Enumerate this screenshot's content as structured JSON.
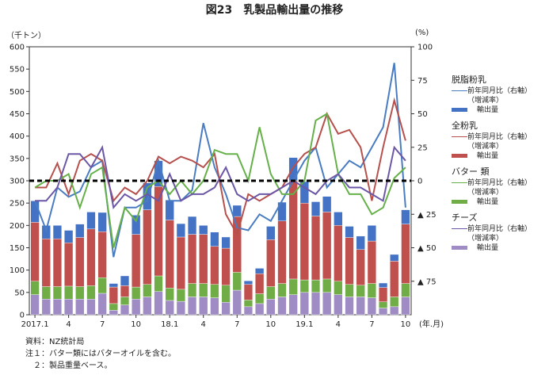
{
  "title": "図23　乳製品輸出量の推移",
  "left_unit": "（千トン）",
  "right_unit": "(%)",
  "x_unit": "(年.月)",
  "colors": {
    "skim_line": "#4a7cc2",
    "skim_bar": "#4472c4",
    "whole_line": "#b6504d",
    "whole_bar": "#c0504d",
    "butter_line": "#66b04a",
    "butter_bar": "#70ad47",
    "cheese_line": "#6b57a6",
    "cheese_bar": "#a08cc4"
  },
  "legend": [
    {
      "name": "脱脂粉乳",
      "line_label": "前年同月比（右軸）",
      "line_sub": "（増減率）",
      "bar_label": "輸出量"
    },
    {
      "name": "全粉乳",
      "line_label": "前年同月比（右軸）",
      "line_sub": "（増減率）",
      "bar_label": "輸出量"
    },
    {
      "name": "バター 類",
      "line_label": "前年同月比（右軸）",
      "line_sub": "（増減率）",
      "bar_label": "輸出量"
    },
    {
      "name": "チーズ",
      "line_label": "前年同月比（右軸）",
      "line_sub": "（増減率）",
      "bar_label": "輸出量"
    }
  ],
  "notes": [
    "資料：NZ統計局",
    "注１：バター類にはバターオイルを含む。",
    "　２：製品重量ベース。"
  ],
  "chart_data": {
    "type": "bar",
    "stacked": true,
    "x": [
      "2017.1",
      "2",
      "3",
      "4",
      "5",
      "6",
      "7",
      "8",
      "9",
      "10",
      "11",
      "12",
      "18.1",
      "2",
      "3",
      "4",
      "5",
      "6",
      "7",
      "8",
      "9",
      "10",
      "11",
      "12",
      "19.1",
      "2",
      "3",
      "4",
      "5",
      "6",
      "7",
      "8",
      "9",
      "10"
    ],
    "x_tick_labels": [
      {
        "i": 0,
        "label": "2017.1"
      },
      {
        "i": 3,
        "label": "4"
      },
      {
        "i": 6,
        "label": "7"
      },
      {
        "i": 9,
        "label": "10"
      },
      {
        "i": 12,
        "label": "18.1"
      },
      {
        "i": 15,
        "label": "4"
      },
      {
        "i": 18,
        "label": "7"
      },
      {
        "i": 21,
        "label": "10"
      },
      {
        "i": 24,
        "label": "19.1"
      },
      {
        "i": 27,
        "label": "4"
      },
      {
        "i": 30,
        "label": "7"
      },
      {
        "i": 33,
        "label": "10"
      }
    ],
    "left_axis": {
      "min": 0,
      "max": 600,
      "step": 50
    },
    "right_axis": {
      "min": -100,
      "max": 100,
      "ticks": [
        {
          "v": 100,
          "label": "100"
        },
        {
          "v": 75,
          "label": "75"
        },
        {
          "v": 50,
          "label": "50"
        },
        {
          "v": 25,
          "label": "25"
        },
        {
          "v": 0,
          "label": "0"
        },
        {
          "v": -25,
          "label": "▲ 25"
        },
        {
          "v": -50,
          "label": "▲ 50"
        },
        {
          "v": -75,
          "label": "▲ 75"
        }
      ]
    },
    "bars": [
      {
        "name": "チーズ",
        "color": "#a08cc4",
        "values": [
          45,
          35,
          35,
          35,
          35,
          35,
          48,
          10,
          22,
          35,
          40,
          52,
          32,
          30,
          40,
          40,
          38,
          28,
          55,
          18,
          25,
          35,
          40,
          45,
          50,
          50,
          50,
          45,
          40,
          40,
          38,
          15,
          18,
          40
        ]
      },
      {
        "name": "バター 類",
        "color": "#70ad47",
        "values": [
          30,
          28,
          28,
          29,
          28,
          30,
          35,
          15,
          18,
          27,
          28,
          35,
          28,
          27,
          30,
          30,
          30,
          38,
          40,
          15,
          22,
          28,
          30,
          35,
          28,
          28,
          30,
          30,
          28,
          26,
          32,
          14,
          22,
          30
        ]
      },
      {
        "name": "全粉乳",
        "color": "#c0504d",
        "values": [
          132,
          107,
          107,
          97,
          110,
          127,
          103,
          37,
          25,
          118,
          167,
          200,
          152,
          117,
          110,
          110,
          85,
          83,
          125,
          35,
          45,
          105,
          140,
          220,
          172,
          143,
          150,
          125,
          105,
          80,
          95,
          32,
          80,
          133
        ]
      },
      {
        "name": "脱脂粉乳",
        "color": "#4472c4",
        "values": [
          48,
          30,
          30,
          28,
          30,
          38,
          43,
          8,
          22,
          43,
          60,
          58,
          45,
          30,
          40,
          20,
          32,
          25,
          25,
          8,
          12,
          30,
          42,
          52,
          48,
          32,
          35,
          30,
          25,
          30,
          35,
          10,
          15,
          32
        ]
      }
    ],
    "lines": [
      {
        "name": "脱脂粉乳 前年同月比",
        "color": "#4a7cc2",
        "values": [
          -15,
          -37,
          -5,
          -12,
          -8,
          10,
          15,
          -57,
          -20,
          -20,
          -15,
          15,
          -15,
          -15,
          -7,
          43,
          10,
          -10,
          -35,
          -37,
          -25,
          -30,
          -15,
          0,
          15,
          25,
          -5,
          5,
          15,
          10,
          25,
          40,
          88,
          -20
        ]
      },
      {
        "name": "全粉乳 前年同月比",
        "color": "#b6504d",
        "values": [
          -5,
          -5,
          13,
          -10,
          15,
          20,
          15,
          -15,
          -5,
          -10,
          0,
          18,
          13,
          18,
          15,
          10,
          20,
          -25,
          -40,
          -10,
          -15,
          -10,
          -5,
          10,
          20,
          25,
          50,
          35,
          38,
          25,
          -15,
          25,
          60,
          30
        ]
      },
      {
        "name": "バター 類 前年同月比",
        "color": "#66b04a",
        "values": [
          -5,
          0,
          0,
          5,
          -20,
          5,
          10,
          -50,
          -20,
          -30,
          -5,
          0,
          -10,
          0,
          -10,
          0,
          23,
          20,
          20,
          0,
          40,
          5,
          -10,
          -10,
          0,
          45,
          50,
          5,
          -10,
          -10,
          -25,
          -20,
          2,
          10
        ]
      },
      {
        "name": "チーズ 前年同月比",
        "color": "#6b57a6",
        "values": [
          -15,
          -15,
          -5,
          20,
          20,
          10,
          25,
          -20,
          -10,
          -15,
          -10,
          -15,
          5,
          -15,
          -10,
          -10,
          -5,
          10,
          -10,
          -15,
          -10,
          -10,
          -5,
          0,
          -5,
          -10,
          0,
          5,
          -5,
          -5,
          -10,
          -15,
          25,
          15
        ]
      }
    ]
  }
}
